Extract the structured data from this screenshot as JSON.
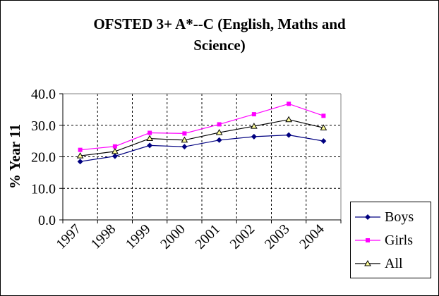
{
  "chart_data": {
    "type": "line",
    "title_lines": [
      "OFSTED 3+ A*--C (English, Maths and",
      "Science)"
    ],
    "ylabel": "% Year 11",
    "xlabel": "",
    "categories": [
      "1997",
      "1998",
      "1999",
      "2000",
      "2001",
      "2002",
      "2003",
      "2004"
    ],
    "ylim": [
      0,
      40
    ],
    "yticks": [
      "0.0",
      "10.0",
      "20.0",
      "30.0",
      "40.0"
    ],
    "grid": true,
    "legend_position": "bottom-right",
    "series": [
      {
        "name": "Boys",
        "color": "#000080",
        "marker": "diamond",
        "values": [
          18.5,
          20.2,
          23.6,
          23.2,
          25.3,
          26.4,
          26.9,
          25.0
        ]
      },
      {
        "name": "Girls",
        "color": "#ff00ff",
        "marker": "square",
        "values": [
          22.2,
          23.3,
          27.6,
          27.4,
          30.3,
          33.5,
          36.8,
          33.0
        ]
      },
      {
        "name": "All",
        "color": "#000000",
        "marker_fill": "#ffff99",
        "marker": "triangle",
        "values": [
          20.3,
          21.7,
          25.8,
          25.3,
          27.7,
          29.7,
          31.8,
          29.2
        ]
      }
    ]
  }
}
